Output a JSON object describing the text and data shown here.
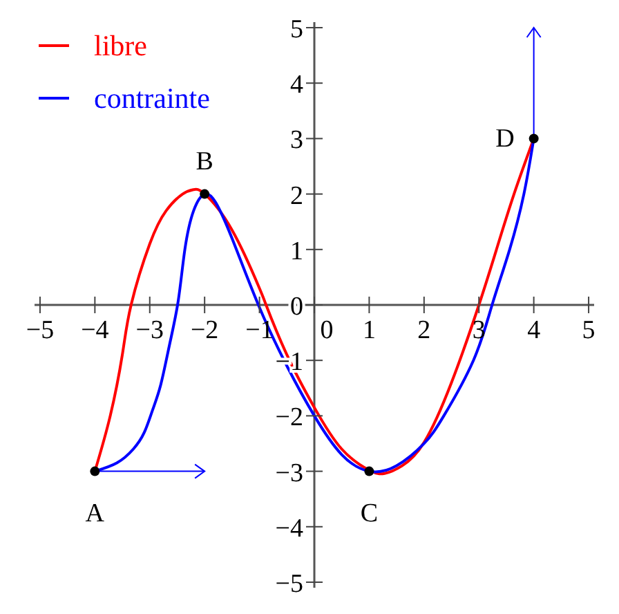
{
  "chart_data": {
    "type": "line",
    "xlim": [
      -5.1,
      5.1
    ],
    "ylim": [
      -5.1,
      5.1
    ],
    "xticks": [
      -5,
      -4,
      -3,
      -2,
      -1,
      0,
      1,
      2,
      3,
      4,
      5
    ],
    "yticks": [
      -5,
      -4,
      -3,
      -2,
      -1,
      0,
      1,
      2,
      3,
      4,
      5
    ],
    "grid": false,
    "legend": "top left",
    "marker": "none",
    "line_style": "solid",
    "series": [
      {
        "name": "libre",
        "color": "#ff0000",
        "x": [
          -4,
          -3.72,
          -3.5,
          -3.34,
          -3,
          -2.7,
          -2.4,
          -2.2,
          -2,
          -1.5,
          -1,
          -0.88,
          -0.5,
          0,
          0.5,
          1,
          1.28,
          1.6,
          2,
          2.5,
          3,
          3.32,
          3.64,
          4
        ],
        "values": [
          -3,
          -2,
          -0.9,
          0,
          1.1,
          1.7,
          2,
          2.08,
          2,
          1.35,
          0.3,
          0,
          -0.9,
          -1.85,
          -2.6,
          -2.98,
          -3.04,
          -2.9,
          -2.48,
          -1.4,
          0,
          1,
          2,
          3
        ]
      },
      {
        "name": "contrainte",
        "color": "#0000ff",
        "x": [
          -4,
          -3.6,
          -3.3,
          -3.1,
          -2.95,
          -2.8,
          -2.64,
          -2.48,
          -2.36,
          -2.2,
          -2,
          -1.8,
          -1.5,
          -1.02,
          -0.5,
          0,
          0.5,
          1,
          1.5,
          2,
          2.36,
          2.9,
          3.24,
          3.56,
          3.82,
          4
        ],
        "values": [
          -3,
          -2.85,
          -2.6,
          -2.3,
          -1.9,
          -1.44,
          -0.72,
          0.08,
          1,
          1.7,
          2,
          1.85,
          1.2,
          0,
          -1.1,
          -2,
          -2.7,
          -3,
          -2.9,
          -2.5,
          -2,
          -1,
          0,
          1,
          2,
          3
        ]
      },
      {
        "type": "scatter",
        "marker": "circle",
        "color": "#000000",
        "x": [
          -4,
          -2,
          1,
          4
        ],
        "values": [
          -3,
          2,
          -3,
          3
        ]
      }
    ],
    "annotations": [
      {
        "text": "A",
        "x": -4,
        "y": -3
      },
      {
        "text": "B",
        "x": -2,
        "y": 2
      },
      {
        "text": "C",
        "x": 1,
        "y": -3
      },
      {
        "text": "D",
        "x": 4,
        "y": 3
      }
    ]
  }
}
